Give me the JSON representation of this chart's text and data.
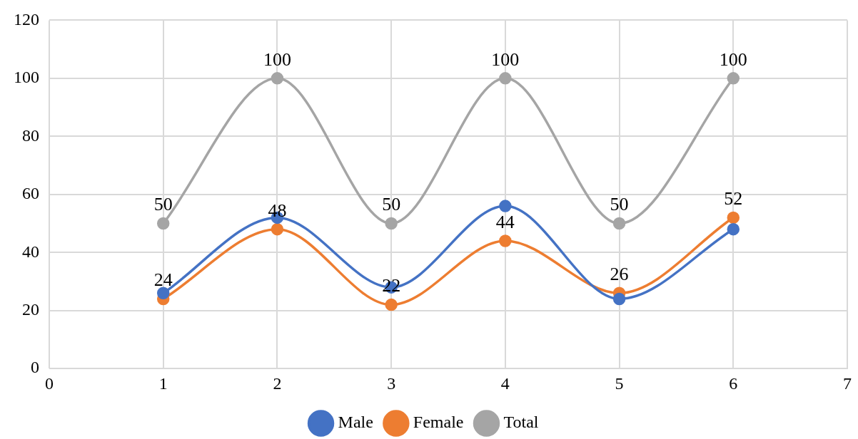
{
  "chart_data": {
    "type": "line",
    "x": [
      1,
      2,
      3,
      4,
      5,
      6
    ],
    "series": [
      {
        "name": "Male",
        "color": "#4472c4",
        "values": [
          26,
          52,
          28,
          56,
          24,
          48
        ]
      },
      {
        "name": "Female",
        "color": "#ed7d31",
        "values": [
          24,
          48,
          22,
          44,
          26,
          52
        ],
        "value_labels": [
          "24",
          "48",
          "22",
          "44",
          "26",
          "52"
        ]
      },
      {
        "name": "Total",
        "color": "#a5a5a5",
        "values": [
          50,
          100,
          50,
          100,
          50,
          100
        ],
        "value_labels": [
          "50",
          "100",
          "50",
          "100",
          "50",
          "100"
        ]
      }
    ],
    "xlim": [
      0,
      7
    ],
    "xticks": [
      0,
      1,
      2,
      3,
      4,
      5,
      6,
      7
    ],
    "ylim": [
      0,
      120
    ],
    "yticks": [
      0,
      20,
      40,
      60,
      80,
      100,
      120
    ],
    "grid": true,
    "legend": "bottom",
    "marker": "circle",
    "line_style": "solid"
  }
}
